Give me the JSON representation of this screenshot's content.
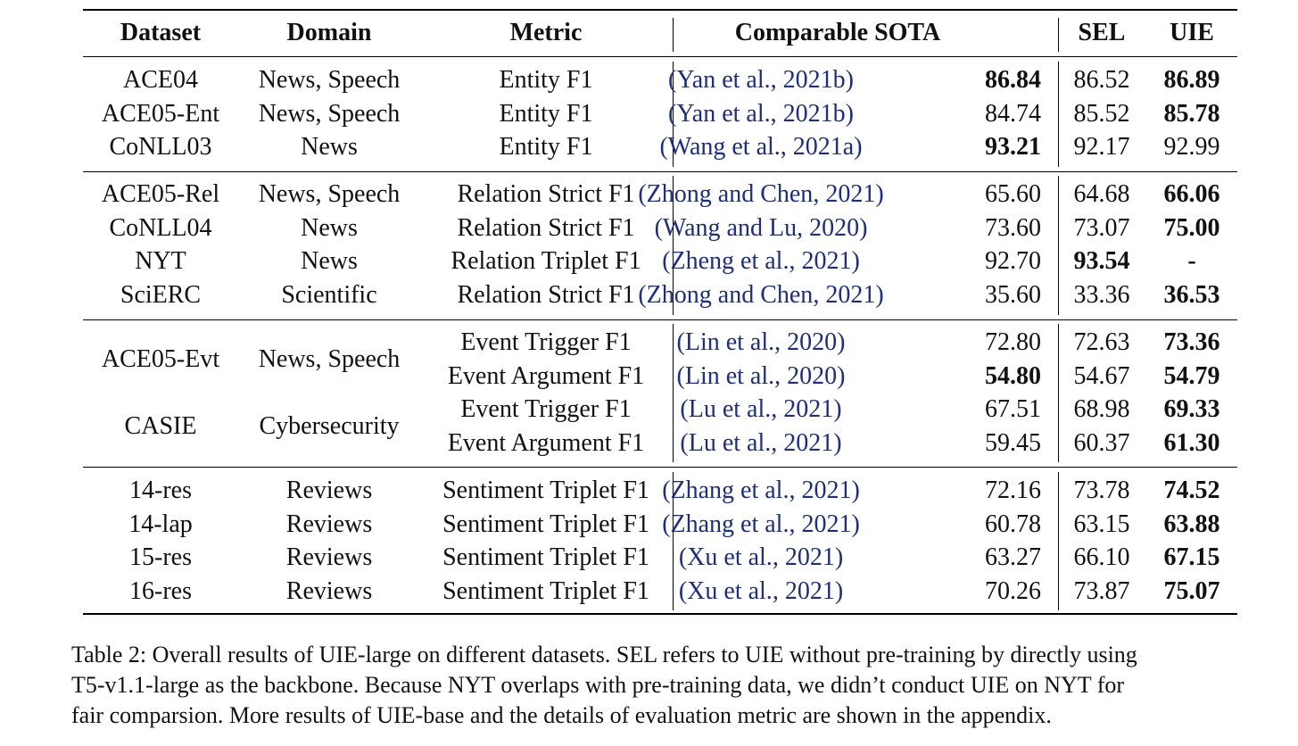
{
  "table": {
    "headers": {
      "dataset": "Dataset",
      "domain": "Domain",
      "metric": "Metric",
      "sota": "Comparable SOTA",
      "sel": "SEL",
      "uie": "UIE"
    },
    "groups": [
      {
        "rows": [
          {
            "dataset": "ACE04",
            "domain": "News, Speech",
            "metric": "Entity F1",
            "cite_author": "Yan et al.",
            "cite_year": "2021b",
            "sota": "86.84",
            "sota_bold": true,
            "sel": "86.52",
            "sel_bold": false,
            "uie": "86.89",
            "uie_bold": true
          },
          {
            "dataset": "ACE05-Ent",
            "domain": "News, Speech",
            "metric": "Entity F1",
            "cite_author": "Yan et al.",
            "cite_year": "2021b",
            "sota": "84.74",
            "sota_bold": false,
            "sel": "85.52",
            "sel_bold": false,
            "uie": "85.78",
            "uie_bold": true
          },
          {
            "dataset": "CoNLL03",
            "domain": "News",
            "metric": "Entity F1",
            "cite_author": "Wang et al.",
            "cite_year": "2021a",
            "sota": "93.21",
            "sota_bold": true,
            "sel": "92.17",
            "sel_bold": false,
            "uie": "92.99",
            "uie_bold": false
          }
        ]
      },
      {
        "rows": [
          {
            "dataset": "ACE05-Rel",
            "domain": "News, Speech",
            "metric": "Relation Strict F1",
            "cite_author": "Zhong and Chen",
            "cite_year": "2021",
            "sota": "65.60",
            "sota_bold": false,
            "sel": "64.68",
            "sel_bold": false,
            "uie": "66.06",
            "uie_bold": true
          },
          {
            "dataset": "CoNLL04",
            "domain": "News",
            "metric": "Relation Strict F1",
            "cite_author": "Wang and Lu",
            "cite_year": "2020",
            "sota": "73.60",
            "sota_bold": false,
            "sel": "73.07",
            "sel_bold": false,
            "uie": "75.00",
            "uie_bold": true
          },
          {
            "dataset": "NYT",
            "domain": "News",
            "metric": "Relation Triplet F1",
            "cite_author": "Zheng et al.",
            "cite_year": "2021",
            "sota": "92.70",
            "sota_bold": false,
            "sel": "93.54",
            "sel_bold": true,
            "uie": "-",
            "uie_bold": true
          },
          {
            "dataset": "SciERC",
            "domain": "Scientific",
            "metric": "Relation Strict F1",
            "cite_author": "Zhong and Chen",
            "cite_year": "2021",
            "sota": "35.60",
            "sota_bold": false,
            "sel": "33.36",
            "sel_bold": false,
            "uie": "36.53",
            "uie_bold": true
          }
        ]
      },
      {
        "rows": [
          {
            "dataset": "ACE05-Evt",
            "domain": "News, Speech",
            "metric": "Event Trigger F1",
            "cite_author": "Lin et al.",
            "cite_year": "2020",
            "sota": "72.80",
            "sota_bold": false,
            "sel": "72.63",
            "sel_bold": false,
            "uie": "73.36",
            "uie_bold": true
          },
          {
            "dataset": "",
            "domain": "",
            "metric": "Event Argument F1",
            "cite_author": "Lin et al.",
            "cite_year": "2020",
            "sota": "54.80",
            "sota_bold": true,
            "sel": "54.67",
            "sel_bold": false,
            "uie": "54.79",
            "uie_bold": true
          },
          {
            "dataset": "CASIE",
            "domain": "Cybersecurity",
            "metric": "Event Trigger F1",
            "cite_author": "Lu et al.",
            "cite_year": "2021",
            "sota": "67.51",
            "sota_bold": false,
            "sel": "68.98",
            "sel_bold": false,
            "uie": "69.33",
            "uie_bold": true
          },
          {
            "dataset": "",
            "domain": "",
            "metric": "Event Argument F1",
            "cite_author": "Lu et al.",
            "cite_year": "2021",
            "sota": "59.45",
            "sota_bold": false,
            "sel": "60.37",
            "sel_bold": false,
            "uie": "61.30",
            "uie_bold": true
          }
        ]
      },
      {
        "rows": [
          {
            "dataset": "14-res",
            "domain": "Reviews",
            "metric": "Sentiment Triplet F1",
            "cite_author": "Zhang et al.",
            "cite_year": "2021",
            "sota": "72.16",
            "sota_bold": false,
            "sel": "73.78",
            "sel_bold": false,
            "uie": "74.52",
            "uie_bold": true
          },
          {
            "dataset": "14-lap",
            "domain": "Reviews",
            "metric": "Sentiment Triplet F1",
            "cite_author": "Zhang et al.",
            "cite_year": "2021",
            "sota": "60.78",
            "sota_bold": false,
            "sel": "63.15",
            "sel_bold": false,
            "uie": "63.88",
            "uie_bold": true
          },
          {
            "dataset": "15-res",
            "domain": "Reviews",
            "metric": "Sentiment Triplet F1",
            "cite_author": "Xu et al.",
            "cite_year": "2021",
            "sota": "63.27",
            "sota_bold": false,
            "sel": "66.10",
            "sel_bold": false,
            "uie": "67.15",
            "uie_bold": true
          },
          {
            "dataset": "16-res",
            "domain": "Reviews",
            "metric": "Sentiment Triplet F1",
            "cite_author": "Xu et al.",
            "cite_year": "2021",
            "sota": "70.26",
            "sota_bold": false,
            "sel": "73.87",
            "sel_bold": false,
            "uie": "75.07",
            "uie_bold": true
          }
        ]
      }
    ]
  },
  "caption": {
    "line1": "Table 2: Overall results of UIE-large on different datasets. SEL refers to UIE without pre-training by directly using",
    "line2": "T5-v1.1-large as the backbone. Because NYT overlaps with pre-training data, we didn’t conduct UIE on NYT for",
    "line3": "fair comparsion. More results of UIE-base and the details of evaluation metric are shown in the appendix."
  },
  "colors": {
    "citation": "#1a2c8c",
    "text": "#111111",
    "rule": "#000000"
  }
}
